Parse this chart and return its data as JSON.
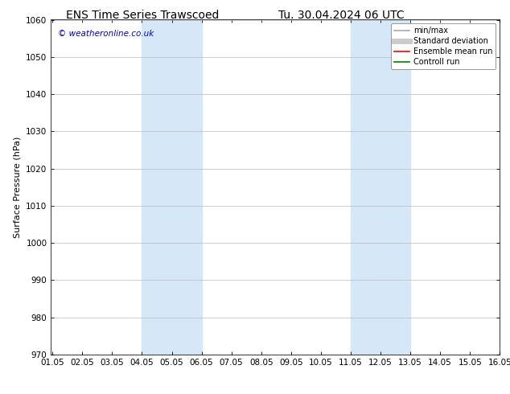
{
  "title_left": "ENS Time Series Trawscoed",
  "title_right": "Tu. 30.04.2024 06 UTC",
  "ylabel": "Surface Pressure (hPa)",
  "xlim": [
    1.0,
    16.05
  ],
  "ylim": [
    970,
    1060
  ],
  "yticks": [
    970,
    980,
    990,
    1000,
    1010,
    1020,
    1030,
    1040,
    1050,
    1060
  ],
  "xtick_labels": [
    "01.05",
    "02.05",
    "03.05",
    "04.05",
    "05.05",
    "06.05",
    "07.05",
    "08.05",
    "09.05",
    "10.05",
    "11.05",
    "12.05",
    "13.05",
    "14.05",
    "15.05",
    "16.05"
  ],
  "xtick_values": [
    1.05,
    2.05,
    3.05,
    4.05,
    5.05,
    6.05,
    7.05,
    8.05,
    9.05,
    10.05,
    11.05,
    12.05,
    13.05,
    14.05,
    15.05,
    16.05
  ],
  "shaded_bands": [
    {
      "x_start": 4.05,
      "x_end": 6.05,
      "color": "#d6e8f7",
      "alpha": 1.0
    },
    {
      "x_start": 11.05,
      "x_end": 13.05,
      "color": "#d6e8f7",
      "alpha": 1.0
    }
  ],
  "copyright_text": "© weatheronline.co.uk",
  "copyright_color": "#0000cc",
  "legend_items": [
    {
      "label": "min/max",
      "color": "#aaaaaa",
      "lw": 1.2,
      "style": "solid"
    },
    {
      "label": "Standard deviation",
      "color": "#cccccc",
      "lw": 5,
      "style": "solid"
    },
    {
      "label": "Ensemble mean run",
      "color": "#ff0000",
      "lw": 1.2,
      "style": "solid"
    },
    {
      "label": "Controll run",
      "color": "#008000",
      "lw": 1.2,
      "style": "solid"
    }
  ],
  "background_color": "#ffffff",
  "grid_color": "#bbbbbb",
  "title_fontsize": 10,
  "ylabel_fontsize": 8,
  "tick_fontsize": 7.5,
  "copyright_fontsize": 7.5,
  "legend_fontsize": 7
}
